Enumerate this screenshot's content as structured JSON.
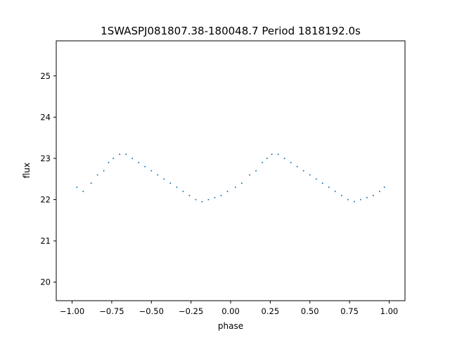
{
  "chart_data": {
    "type": "scatter",
    "title": "1SWASPJ081807.38-180048.7 Period 1818192.0s",
    "xlabel": "phase",
    "ylabel": "flux",
    "xlim": [
      -1.1,
      1.1
    ],
    "ylim": [
      19.55,
      25.85
    ],
    "x_ticks": [
      -1.0,
      -0.75,
      -0.5,
      -0.25,
      0.0,
      0.25,
      0.5,
      0.75,
      1.0
    ],
    "x_tick_labels": [
      "−1.00",
      "−0.75",
      "−0.50",
      "−0.25",
      "0.00",
      "0.25",
      "0.50",
      "0.75",
      "1.00"
    ],
    "y_ticks": [
      20,
      21,
      22,
      23,
      24,
      25
    ],
    "y_tick_labels": [
      "20",
      "21",
      "22",
      "23",
      "24",
      "25"
    ],
    "grid": false,
    "marker_color": "#1f77b4",
    "phase_folded": true,
    "series": [
      {
        "x": [
          -0.97,
          -0.93,
          -0.88,
          -0.84,
          -0.8,
          -0.77,
          -0.74,
          -0.7,
          -0.66,
          -0.62,
          -0.58,
          -0.54,
          -0.5,
          -0.46,
          -0.42,
          -0.38,
          -0.34,
          -0.3,
          -0.26,
          -0.22,
          -0.18,
          -0.14,
          -0.1,
          -0.06,
          -0.02,
          0.03,
          0.07,
          0.12,
          0.16,
          0.2,
          0.23,
          0.26,
          0.3,
          0.34,
          0.38,
          0.42,
          0.46,
          0.5,
          0.54,
          0.58,
          0.62,
          0.66,
          0.7,
          0.74,
          0.78,
          0.82,
          0.86,
          0.9,
          0.94,
          0.97
        ],
        "y": [
          22.3,
          22.2,
          22.4,
          22.6,
          22.7,
          22.9,
          23.0,
          23.1,
          23.1,
          23.0,
          22.9,
          22.8,
          22.7,
          22.6,
          22.5,
          22.4,
          22.3,
          22.2,
          22.1,
          22.0,
          21.95,
          22.0,
          22.05,
          22.1,
          22.2,
          22.3,
          22.4,
          22.6,
          22.7,
          22.9,
          23.0,
          23.1,
          23.1,
          23.0,
          22.9,
          22.8,
          22.7,
          22.6,
          22.5,
          22.4,
          22.3,
          22.2,
          22.1,
          22.0,
          21.95,
          22.0,
          22.05,
          22.1,
          22.2,
          22.3
        ]
      }
    ]
  }
}
